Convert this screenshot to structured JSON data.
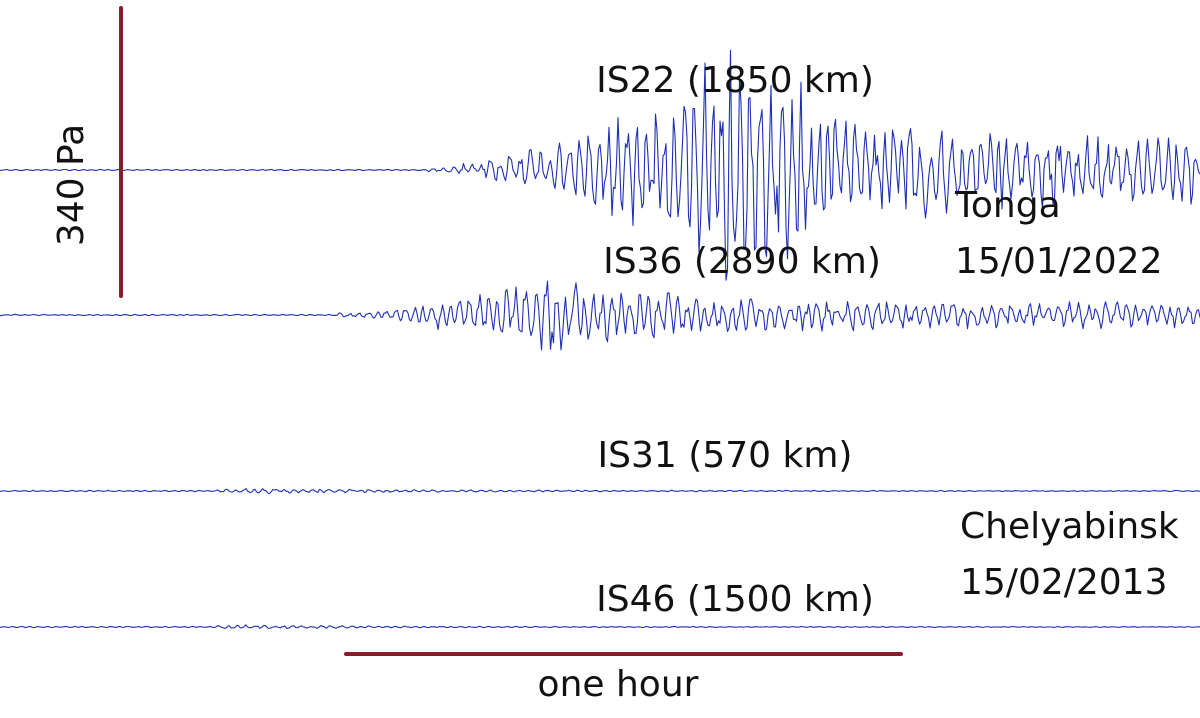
{
  "chart_data": {
    "type": "line",
    "title": "",
    "trace_color": "#1f2fb4",
    "scale_bar_color": "#8b1a2b",
    "x_scale_bar": {
      "label": "one hour",
      "value_hours": 1
    },
    "y_scale_bar": {
      "label": "340 Pa",
      "value_pa": 340
    },
    "events": [
      {
        "name": "Tonga",
        "date": "15/01/2022"
      },
      {
        "name": "Chelyabinsk",
        "date": "15/02/2013"
      }
    ],
    "series": [
      {
        "name": "IS22 (1850 km)",
        "station": "IS22",
        "distance_km": 1850,
        "event": "Tonga",
        "onset_hour": 0.38,
        "peak_hour": 0.95,
        "peak_amplitude_pa": 270,
        "coda_amplitude_pa": 75
      },
      {
        "name": "IS36 (2890 km)",
        "station": "IS36",
        "distance_km": 2890,
        "event": "Tonga",
        "onset_hour": 0.22,
        "peak_hour": 0.6,
        "peak_amplitude_pa": 85,
        "coda_amplitude_pa": 27
      },
      {
        "name": "IS31 (570 km)",
        "station": "IS31",
        "distance_km": 570,
        "event": "Chelyabinsk",
        "onset_hour": 0.0,
        "peak_hour": 0.05,
        "peak_amplitude_pa": 6,
        "coda_amplitude_pa": 1
      },
      {
        "name": "IS46 (1500 km)",
        "station": "IS46",
        "distance_km": 1500,
        "event": "Chelyabinsk",
        "onset_hour": 0.0,
        "peak_hour": 0.3,
        "peak_amplitude_pa": 2,
        "coda_amplitude_pa": 1
      }
    ]
  }
}
